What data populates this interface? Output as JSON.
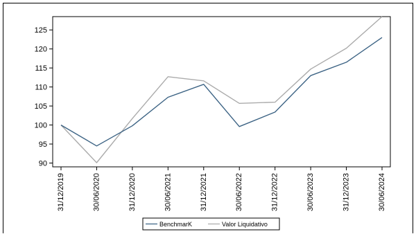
{
  "chart_data": {
    "type": "line",
    "title": "",
    "xlabel": "",
    "ylabel": "",
    "categories": [
      "31/12/2019",
      "30/06/2020",
      "31/12/2020",
      "30/06/2021",
      "31/12/2021",
      "30/06/2022",
      "31/12/2022",
      "30/06/2023",
      "31/12/2023",
      "30/06/2024"
    ],
    "series": [
      {
        "name": "BenchmarK",
        "color": "#3c6384",
        "values": [
          100,
          94.5,
          99.8,
          107.3,
          110.7,
          99.6,
          103.4,
          113.0,
          116.5,
          123.0
        ]
      },
      {
        "name": "Valor Liquidativo",
        "color": "#ababab",
        "values": [
          100,
          90.1,
          101.7,
          112.7,
          111.6,
          105.7,
          106.0,
          114.7,
          120.2,
          128.5
        ]
      }
    ],
    "y_ticks": [
      90,
      95,
      100,
      105,
      110,
      115,
      120,
      125
    ],
    "ylim": [
      89,
      128.5
    ],
    "grid": false,
    "legend_position": "bottom-center"
  }
}
